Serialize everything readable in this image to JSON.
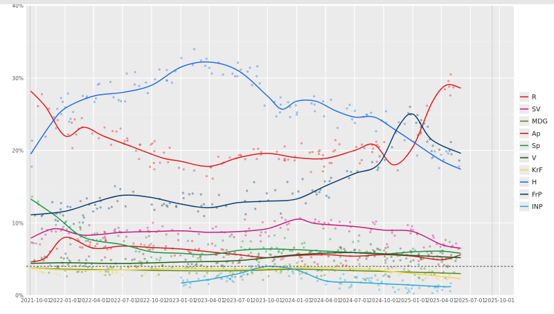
{
  "chart_data": {
    "type": "line",
    "title": "",
    "xlabel": "",
    "ylabel": "",
    "x_ticks": [
      "2021-10-01",
      "2022-01-01",
      "2022-04-01",
      "2022-07-01",
      "2022-10-01",
      "2023-01-01",
      "2023-04-01",
      "2023-07-01",
      "2023-10-01",
      "2024-01-01",
      "2024-04-01",
      "2024-07-01",
      "2024-10-01",
      "2025-01-01",
      "2025-04-01",
      "2025-07-01",
      "2025-10-01"
    ],
    "xlim": [
      "2021-09-01",
      "2025-11-15"
    ],
    "y_ticks": [
      "0%",
      "10%",
      "20%",
      "30%",
      "40%"
    ],
    "ylim": [
      0,
      40
    ],
    "reference_line": {
      "y": 4,
      "style": "dashed"
    },
    "vertical_lines": [
      {
        "x": "2021-09-13",
        "color": "#cfcfcf"
      },
      {
        "x": "2025-09-08",
        "color": "#cfcfcf"
      }
    ],
    "legend_position": "right",
    "points_shown": true,
    "series": [
      {
        "name": "R",
        "color": "#e41a1c",
        "x": [
          "2021-09-15",
          "2021-11-01",
          "2022-01-01",
          "2022-03-01",
          "2022-05-01",
          "2022-08-01",
          "2022-11-01",
          "2023-01-01",
          "2023-04-01",
          "2023-07-01",
          "2023-10-01",
          "2024-01-01",
          "2024-04-01",
          "2024-07-01",
          "2024-09-01",
          "2024-11-01",
          "2025-01-01",
          "2025-03-01",
          "2025-04-15",
          "2025-06-01"
        ],
        "y": [
          28.2,
          26,
          22,
          23.2,
          22,
          20.5,
          19,
          18.5,
          17.8,
          19,
          19.6,
          19,
          18.9,
          20,
          20.8,
          18,
          20.5,
          26.5,
          29,
          28.6
        ]
      },
      {
        "name": "SV",
        "color": "#c51b7d",
        "x": [
          "2021-09-15",
          "2021-12-01",
          "2022-03-01",
          "2022-07-01",
          "2022-10-01",
          "2023-01-01",
          "2023-04-01",
          "2023-07-01",
          "2023-10-01",
          "2024-01-01",
          "2024-03-01",
          "2024-07-01",
          "2024-10-01",
          "2025-01-01",
          "2025-04-01",
          "2025-06-01"
        ],
        "y": [
          7.9,
          9.2,
          8.3,
          8.7,
          8.8,
          8.9,
          8.7,
          8.8,
          9.2,
          10.5,
          9.9,
          9.5,
          9,
          8.8,
          7,
          6.5
        ]
      },
      {
        "name": "MDG",
        "color": "#5a8a1a",
        "x": [
          "2021-09-15",
          "2022-01-01",
          "2022-07-01",
          "2023-01-01",
          "2023-07-01",
          "2024-01-01",
          "2024-07-01",
          "2025-01-01",
          "2025-06-01"
        ],
        "y": [
          3.8,
          3.6,
          3.5,
          3.4,
          3.4,
          3.6,
          3.4,
          3.2,
          3
        ]
      },
      {
        "name": "Ap",
        "color": "#d7191c",
        "x": [
          "2021-09-15",
          "2021-11-01",
          "2022-01-01",
          "2022-04-01",
          "2022-07-01",
          "2022-10-01",
          "2023-01-01",
          "2023-04-01",
          "2023-07-01",
          "2023-10-01",
          "2024-01-01",
          "2024-04-01",
          "2024-07-01",
          "2024-10-01",
          "2025-01-01",
          "2025-04-01",
          "2025-06-01"
        ],
        "y": [
          4.6,
          5.2,
          8,
          6.5,
          6.8,
          6.6,
          6.4,
          6,
          5.6,
          5.2,
          5.5,
          5.6,
          5.4,
          5.6,
          5.4,
          4.9,
          5.6
        ]
      },
      {
        "name": "Sp",
        "color": "#1a9641",
        "x": [
          "2021-09-15",
          "2021-12-01",
          "2022-03-01",
          "2022-07-01",
          "2022-10-01",
          "2023-01-01",
          "2023-04-01",
          "2023-07-01",
          "2023-10-01",
          "2024-01-01",
          "2024-04-01",
          "2024-07-01",
          "2024-10-01",
          "2025-01-01",
          "2025-04-01",
          "2025-06-01"
        ],
        "y": [
          13.3,
          11,
          8,
          7,
          6,
          5.8,
          5.6,
          6.2,
          6.4,
          6.3,
          6.1,
          5.9,
          5.7,
          6,
          6.1,
          5.8
        ]
      },
      {
        "name": "V",
        "color": "#1b5e20",
        "x": [
          "2021-09-15",
          "2022-01-01",
          "2022-07-01",
          "2023-01-01",
          "2023-07-01",
          "2024-01-01",
          "2024-07-01",
          "2025-01-01",
          "2025-06-01"
        ],
        "y": [
          4.4,
          4.5,
          4.4,
          4.6,
          4.8,
          5.6,
          5.9,
          5.5,
          5.2
        ]
      },
      {
        "name": "KrF",
        "color": "#f1d94b",
        "x": [
          "2021-09-15",
          "2022-01-01",
          "2022-07-01",
          "2023-01-01",
          "2023-07-01",
          "2024-01-01",
          "2024-07-01",
          "2025-01-01",
          "2025-06-01"
        ],
        "y": [
          3.8,
          3.5,
          3.5,
          3.7,
          3.6,
          3.8,
          3.7,
          3,
          2.3
        ]
      },
      {
        "name": "H",
        "color": "#1f6fe0",
        "x": [
          "2021-09-15",
          "2021-11-15",
          "2022-01-01",
          "2022-04-01",
          "2022-07-01",
          "2022-10-01",
          "2023-01-01",
          "2023-04-01",
          "2023-07-01",
          "2023-10-01",
          "2023-11-15",
          "2024-01-01",
          "2024-03-01",
          "2024-05-01",
          "2024-07-01",
          "2024-09-01",
          "2024-11-01",
          "2025-01-01",
          "2025-04-01",
          "2025-06-01"
        ],
        "y": [
          19.5,
          23.5,
          25.8,
          27.5,
          28,
          29,
          31.5,
          32.2,
          31,
          27.5,
          25.7,
          26.8,
          26.8,
          25.5,
          24.6,
          24.6,
          23,
          21.2,
          18.6,
          17.4
        ]
      },
      {
        "name": "FrP",
        "color": "#0b3d6b",
        "x": [
          "2021-09-15",
          "2022-01-01",
          "2022-04-01",
          "2022-07-01",
          "2022-10-01",
          "2023-01-01",
          "2023-04-01",
          "2023-07-01",
          "2023-10-01",
          "2024-01-01",
          "2024-04-01",
          "2024-07-01",
          "2024-09-15",
          "2024-11-15",
          "2025-01-01",
          "2025-03-01",
          "2025-06-01"
        ],
        "y": [
          11.1,
          11.6,
          12.8,
          13.8,
          13.5,
          12.6,
          12.1,
          12.8,
          13,
          13.3,
          15.1,
          16.8,
          18.1,
          23.2,
          25,
          21.5,
          19.6
        ]
      },
      {
        "name": "INP",
        "color": "#29a8d8",
        "x": [
          "2023-01-01",
          "2023-04-01",
          "2023-07-01",
          "2023-10-01",
          "2024-01-01",
          "2024-04-01",
          "2024-07-01",
          "2024-10-01",
          "2025-01-01",
          "2025-04-01",
          "2025-05-01"
        ],
        "y": [
          1.7,
          2.2,
          3,
          4,
          3.5,
          2,
          1.8,
          1.6,
          1.4,
          1.2,
          1.2
        ]
      }
    ]
  }
}
